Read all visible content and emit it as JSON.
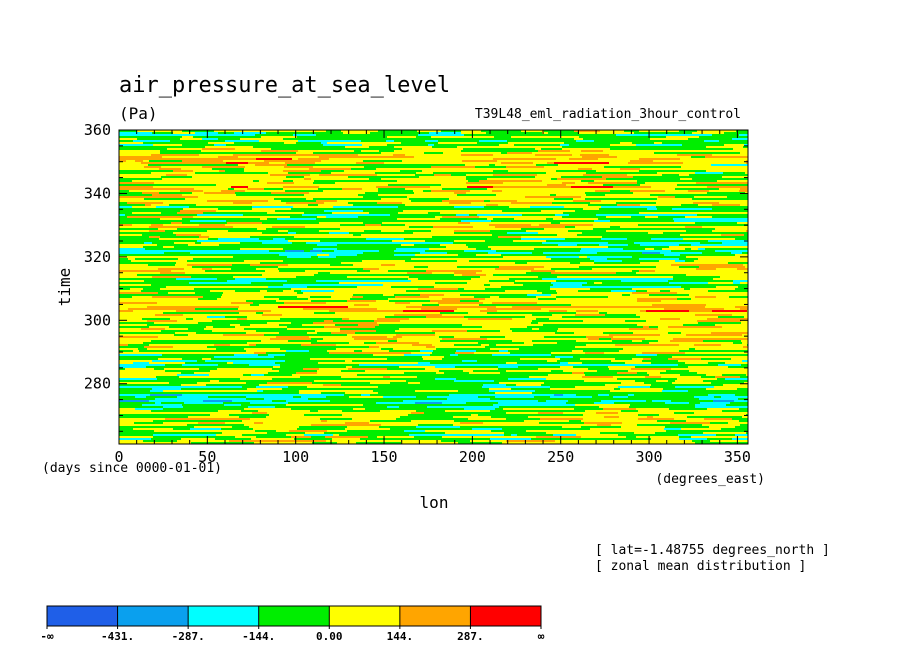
{
  "chart_data": {
    "type": "heatmap",
    "title": "air_pressure_at_sea_level",
    "units": "(Pa)",
    "experiment": "T39L48_eml_radiation_3hour_control",
    "xlabel": "lon",
    "ylabel": "time",
    "x_units_label": "(degrees_east)",
    "y_units_label": "(days since 0000-01-01)",
    "xlim": [
      0,
      356
    ],
    "ylim": [
      261,
      360
    ],
    "xticks": [
      0,
      50,
      100,
      150,
      200,
      250,
      300,
      350
    ],
    "yticks": [
      280,
      300,
      320,
      340,
      360
    ],
    "xtick_labels": [
      "0",
      "50",
      "100",
      "150",
      "200",
      "250",
      "300",
      "350"
    ],
    "ytick_labels": [
      "280",
      "300",
      "320",
      "340",
      "360"
    ],
    "annotations": [
      "[ lat=-1.48755 degrees_north ]",
      "[ zonal mean distribution ]"
    ],
    "colorbar": {
      "colors": [
        "#1f5fe8",
        "#0aa0ee",
        "#00ffff",
        "#00ee00",
        "#ffff00",
        "#ffa500",
        "#ff0000"
      ],
      "bounds": [
        -431,
        -287,
        -144,
        0,
        144,
        287
      ],
      "labels": [
        "-∞",
        "-431.",
        "-287.",
        "-144.",
        "0.00",
        "144.",
        "287.",
        "∞"
      ]
    },
    "grid": false
  }
}
